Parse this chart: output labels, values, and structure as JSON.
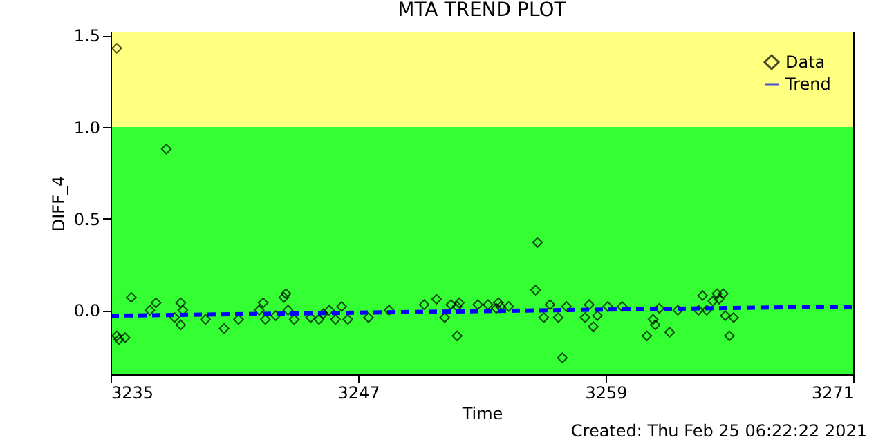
{
  "chart_data": {
    "type": "scatter",
    "title": "MTA TREND PLOT",
    "xlabel": "Time",
    "ylabel": "DIFF_4",
    "annotations": [
      "Created: Thu Feb 25 06:22:22 2021"
    ],
    "xlim": [
      3235,
      3271
    ],
    "xticks": [
      3235,
      3247,
      3259,
      3271
    ],
    "ylim": [
      -0.35,
      1.52
    ],
    "yticks": [
      {
        "value": 0,
        "label": "0.0"
      },
      {
        "value": 0.5,
        "label": "0.5"
      },
      {
        "value": 1,
        "label": "1.0"
      },
      {
        "value": 1.5,
        "label": "1.5"
      }
    ],
    "bands": [
      {
        "axis": "y",
        "from": -0.35,
        "to": 1.0,
        "color": "#33ff33"
      },
      {
        "axis": "y",
        "from": 1.0,
        "to": 1.52,
        "color": "#ffff80"
      }
    ],
    "legend": "top right",
    "series": [
      {
        "name": "Data",
        "color": "#000000",
        "marker": "diamond",
        "x": [
          3235.3,
          3235.3,
          3235.4,
          3235.7,
          3236.0,
          3236.9,
          3237.2,
          3237.7,
          3238.1,
          3238.4,
          3238.4,
          3238.5,
          3239.6,
          3240.5,
          3241.2,
          3242.2,
          3242.4,
          3242.5,
          3243.0,
          3243.4,
          3243.5,
          3243.6,
          3243.9,
          3244.7,
          3245.1,
          3245.3,
          3245.6,
          3245.9,
          3246.2,
          3246.5,
          3247.5,
          3248.5,
          3250.2,
          3250.8,
          3251.2,
          3251.5,
          3251.8,
          3251.8,
          3251.9,
          3252.8,
          3253.3,
          3253.7,
          3253.8,
          3253.9,
          3254.3,
          3255.6,
          3255.7,
          3256.0,
          3256.3,
          3256.7,
          3256.9,
          3257.1,
          3258.0,
          3258.2,
          3258.4,
          3258.6,
          3259.1,
          3259.8,
          3261.0,
          3261.3,
          3261.4,
          3261.6,
          3262.1,
          3262.5,
          3263.5,
          3263.7,
          3263.9,
          3264.2,
          3264.4,
          3264.5,
          3264.7,
          3264.8,
          3265.0,
          3265.2
        ],
        "values": [
          1.43,
          -0.14,
          -0.16,
          -0.15,
          0.07,
          0.0,
          0.04,
          0.88,
          -0.04,
          0.04,
          -0.08,
          0.0,
          -0.05,
          -0.1,
          -0.05,
          0.0,
          0.04,
          -0.05,
          -0.03,
          0.07,
          0.09,
          0.0,
          -0.05,
          -0.04,
          -0.05,
          -0.02,
          0.0,
          -0.05,
          0.02,
          -0.05,
          -0.04,
          0.0,
          0.03,
          0.06,
          -0.04,
          0.03,
          0.02,
          -0.14,
          0.04,
          0.03,
          0.03,
          0.01,
          0.04,
          0.02,
          0.02,
          0.11,
          0.37,
          -0.04,
          0.03,
          -0.04,
          -0.26,
          0.02,
          -0.04,
          0.03,
          -0.09,
          -0.03,
          0.02,
          0.02,
          -0.14,
          -0.05,
          -0.08,
          0.01,
          -0.12,
          0.0,
          0.0,
          0.08,
          0.0,
          0.05,
          0.09,
          0.06,
          0.09,
          -0.03,
          -0.14,
          -0.04
        ]
      },
      {
        "name": "Trend",
        "type": "line",
        "color": "#0000ff",
        "line_style": "dashed",
        "x": [
          3235,
          3271
        ],
        "values": [
          -0.03,
          0.02
        ]
      }
    ]
  }
}
